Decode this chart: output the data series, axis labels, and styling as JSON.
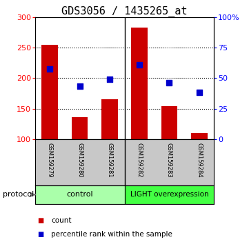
{
  "title": "GDS3056 / 1435265_at",
  "samples": [
    "GSM159279",
    "GSM159280",
    "GSM159281",
    "GSM159282",
    "GSM159283",
    "GSM159284"
  ],
  "counts": [
    255,
    136,
    165,
    283,
    154,
    110
  ],
  "percentile_ranks": [
    215,
    187,
    198,
    222,
    192,
    177
  ],
  "ylim_left": [
    100,
    300
  ],
  "ylim_right": [
    0,
    100
  ],
  "yticks_left": [
    100,
    150,
    200,
    250,
    300
  ],
  "yticks_right": [
    0,
    25,
    50,
    75,
    100
  ],
  "ytick_labels_right": [
    "0",
    "25",
    "50",
    "75",
    "100%"
  ],
  "bar_color": "#cc0000",
  "dot_color": "#0000cc",
  "bar_bottom": 100,
  "ctrl_color": "#aaffaa",
  "light_color": "#44ff44",
  "ctrl_label": "control",
  "light_label": "LIGHT overexpression",
  "protocol_label": "protocol",
  "legend_count_label": "count",
  "legend_pct_label": "percentile rank within the sample",
  "xlabel_area_bg": "#c8c8c8",
  "title_fontsize": 11,
  "tick_fontsize": 8,
  "sample_fontsize": 6,
  "legend_fontsize": 7.5,
  "group_fontsize": 8
}
